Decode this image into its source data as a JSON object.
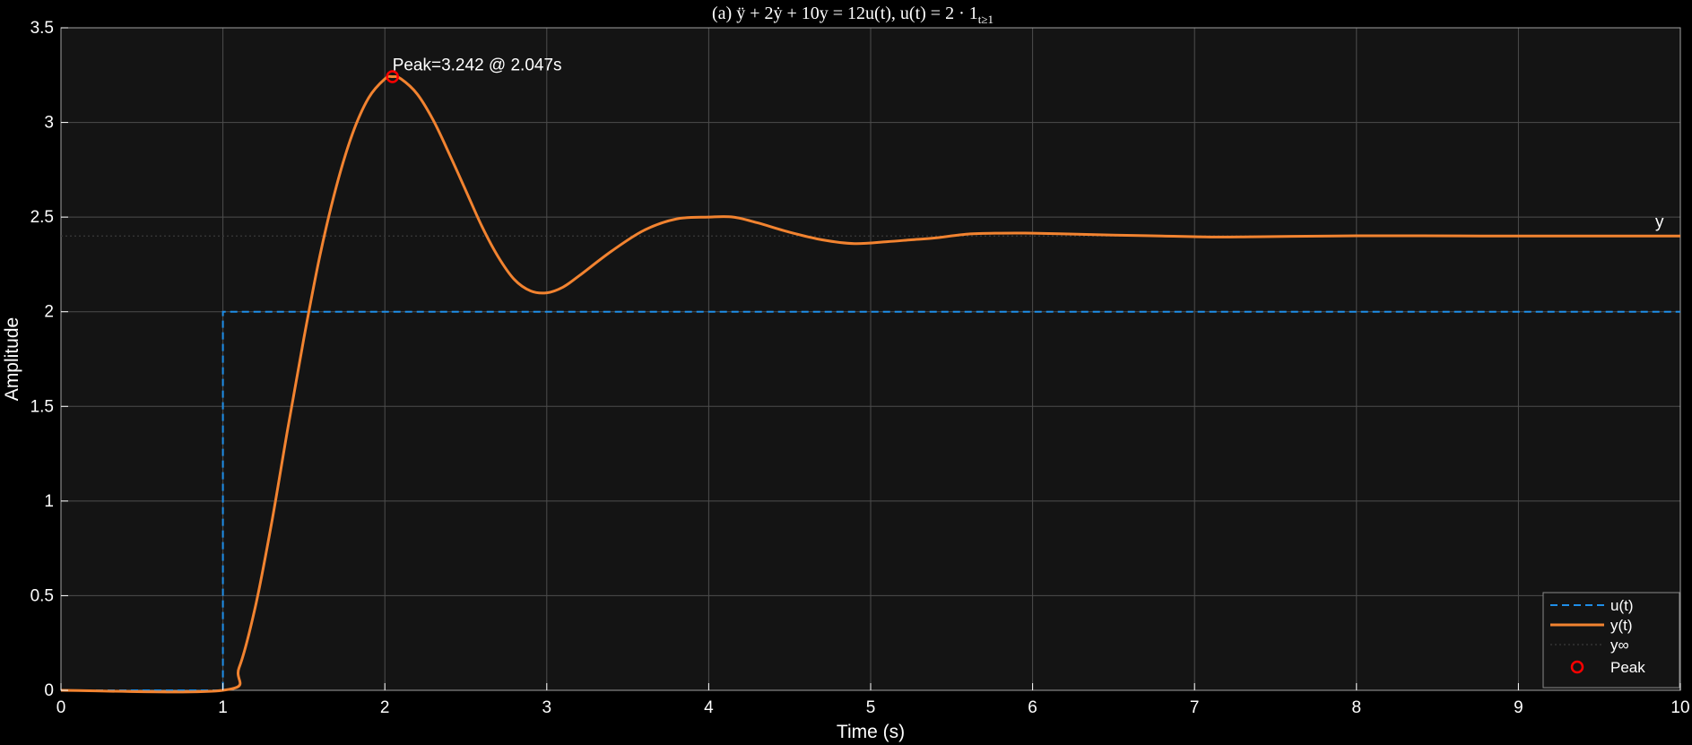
{
  "colors": {
    "figure_bg": "#000000",
    "axes_bg": "#141414",
    "grid": "#4d4d4d",
    "text": "#ffffff",
    "u": "#1f8ee8",
    "y": "#f28330",
    "yinf": "#3a3a3a",
    "peak": "#ff0000",
    "legend_bg": "#141414",
    "legend_border": "#8a8a8a"
  },
  "chart_data": {
    "type": "line",
    "title": "(a) ÿ + 2ẏ + 10y = 12u(t),  u(t) = 2 · 1",
    "title_subscript": "t≥1",
    "xlabel": "Time (s)",
    "ylabel": "Amplitude",
    "xlim": [
      0,
      10
    ],
    "ylim": [
      0,
      3.5
    ],
    "xticks": [
      0,
      1,
      2,
      3,
      4,
      5,
      6,
      7,
      8,
      9,
      10
    ],
    "xtick_labels": [
      "0",
      "1",
      "2",
      "3",
      "4",
      "5",
      "6",
      "7",
      "8",
      "9",
      "10"
    ],
    "yticks": [
      0,
      0.5,
      1,
      1.5,
      2,
      2.5,
      3,
      3.5
    ],
    "ytick_labels": [
      "0",
      "0.5",
      "1",
      "1.5",
      "2",
      "2.5",
      "3",
      "3.5"
    ],
    "grid": true,
    "legend_location": "bottom-right",
    "series": [
      {
        "name": "u(t)",
        "style": "dashed",
        "x": [
          0,
          1,
          1,
          10
        ],
        "y": [
          0,
          0,
          2,
          2
        ]
      },
      {
        "name": "y(t)",
        "style": "solid",
        "x": [
          0,
          1,
          1.1,
          1.2,
          1.3,
          1.4,
          1.5,
          1.6,
          1.7,
          1.8,
          1.9,
          2.0,
          2.047,
          2.1,
          2.2,
          2.3,
          2.4,
          2.5,
          2.6,
          2.7,
          2.8,
          2.9,
          3.0,
          3.1,
          3.2,
          3.4,
          3.6,
          3.8,
          4.0,
          4.15,
          4.3,
          4.5,
          4.7,
          4.9,
          5.1,
          5.25,
          5.4,
          5.6,
          5.8,
          6.0,
          6.25,
          6.5,
          6.8,
          7.1,
          7.35,
          7.6,
          8.0,
          8.4,
          8.8,
          9.2,
          9.6,
          10
        ],
        "y": [
          0,
          0,
          0.12,
          0.44,
          0.88,
          1.38,
          1.86,
          2.3,
          2.66,
          2.94,
          3.13,
          3.23,
          3.242,
          3.23,
          3.15,
          3.01,
          2.83,
          2.64,
          2.45,
          2.29,
          2.17,
          2.11,
          2.1,
          2.13,
          2.19,
          2.32,
          2.43,
          2.49,
          2.5,
          2.5,
          2.47,
          2.42,
          2.38,
          2.36,
          2.37,
          2.38,
          2.39,
          2.41,
          2.415,
          2.415,
          2.41,
          2.405,
          2.4,
          2.395,
          2.396,
          2.398,
          2.401,
          2.401,
          2.4,
          2.4,
          2.4,
          2.4
        ]
      },
      {
        "name": "y∞",
        "style": "dotted",
        "x": [
          0,
          10
        ],
        "y": [
          2.4,
          2.4
        ]
      },
      {
        "name": "Peak",
        "style": "marker-circle",
        "x": [
          2.047
        ],
        "y": [
          3.242
        ]
      }
    ],
    "annotations": [
      {
        "text": "Peak=3.242 @ 2.047s",
        "x": 2.047,
        "y": 3.242
      },
      {
        "text": "y",
        "x": 10,
        "y": 2.4
      }
    ]
  }
}
